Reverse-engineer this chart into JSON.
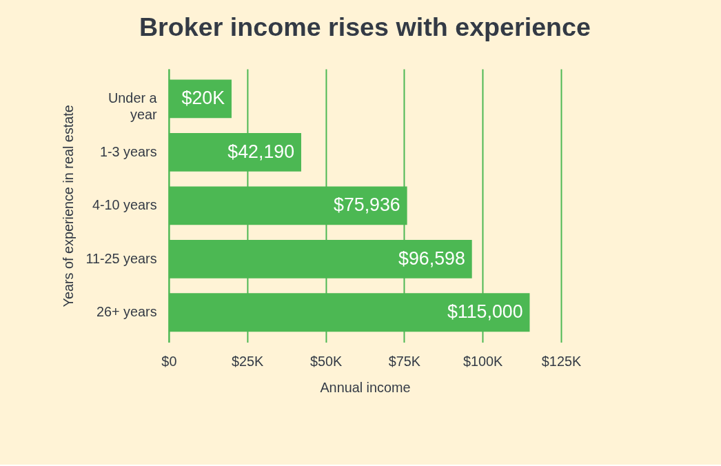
{
  "chart_data": {
    "type": "bar",
    "orientation": "horizontal",
    "title": "Broker income rises with experience",
    "xlabel": "Annual income",
    "ylabel": "Years of experience in real estate",
    "categories": [
      "Under a year",
      "1-3 years",
      "4-10 years",
      "11-25 years",
      "26+ years"
    ],
    "values": [
      20000,
      42190,
      75936,
      96598,
      115000
    ],
    "value_labels": [
      "$20K",
      "$42,190",
      "$75,936",
      "$96,598",
      "$115,000"
    ],
    "color": "#4cb853",
    "xlim": [
      0,
      125000
    ],
    "xticks": [
      {
        "value": 0,
        "label": "$0"
      },
      {
        "value": 25000,
        "label": "$25K"
      },
      {
        "value": 50000,
        "label": "$50K"
      },
      {
        "value": 75000,
        "label": "$75K"
      },
      {
        "value": 100000,
        "label": "$100K"
      },
      {
        "value": 125000,
        "label": "$125K"
      }
    ],
    "grid": "x"
  }
}
